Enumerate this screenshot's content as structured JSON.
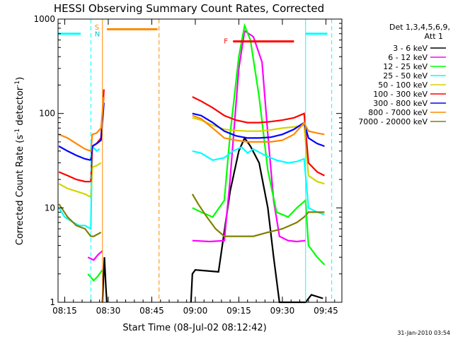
{
  "chart_data": {
    "type": "line",
    "title": "HESSI Observing Summary Count Rates, Corrected",
    "xlabel": "Start Time (08-Jul-02 08:12:42)",
    "ylabel": "Corrected Count Rate (s⁻¹ detector⁻¹)",
    "ylabel_main": "Corrected Count Rate (s",
    "ylabel_sup1": "-1",
    "ylabel_mid": " detector",
    "ylabel_sup2": "-1",
    "ylabel_end": ")",
    "footer": "31-Jan-2010 03:54",
    "xlim": [
      "08:12:42",
      "09:50:30"
    ],
    "ylim": [
      1,
      1000
    ],
    "yscale": "log",
    "x_ticks": [
      "08:15",
      "08:30",
      "08:45",
      "09:00",
      "09:15",
      "09:30",
      "09:45"
    ],
    "y_ticks": [
      "1",
      "10",
      "100",
      "1000"
    ],
    "legend": {
      "header1": "Det 1,3,4,5,6,9,",
      "header2": "Att 1",
      "placement": "right"
    },
    "series": [
      {
        "name": "3 - 6 keV",
        "color": "#000000",
        "points": [
          [
            "08:28:00",
            1
          ],
          [
            "08:28:40",
            3
          ],
          [
            "08:29:10",
            1.5
          ],
          [
            "08:29:30",
            1
          ],
          [
            "08:58:30",
            1
          ],
          [
            "08:59:00",
            2
          ],
          [
            "09:00:00",
            2.2
          ],
          [
            "09:08:00",
            2.1
          ],
          [
            "09:12:00",
            15
          ],
          [
            "09:15:00",
            40
          ],
          [
            "09:17:00",
            55
          ],
          [
            "09:19:00",
            45
          ],
          [
            "09:22:00",
            30
          ],
          [
            "09:25:00",
            10
          ],
          [
            "09:27:00",
            3
          ],
          [
            "09:29:00",
            1
          ],
          [
            "09:38:00",
            1
          ],
          [
            "09:40:00",
            1.2
          ],
          [
            "09:44:00",
            1.1
          ]
        ]
      },
      {
        "name": "6 - 12 keV",
        "color": "#ff00ff",
        "points": [
          [
            "08:23:00",
            3
          ],
          [
            "08:25:00",
            2.8
          ],
          [
            "08:26:30",
            3.2
          ],
          [
            "08:28:00",
            3.5
          ],
          [
            "08:59:00",
            4.5
          ],
          [
            "09:05:00",
            4.4
          ],
          [
            "09:10:00",
            4.5
          ],
          [
            "09:12:00",
            20
          ],
          [
            "09:15:00",
            300
          ],
          [
            "09:17:00",
            750
          ],
          [
            "09:20:00",
            650
          ],
          [
            "09:23:00",
            350
          ],
          [
            "09:25:00",
            60
          ],
          [
            "09:27:00",
            12
          ],
          [
            "09:29:00",
            5
          ],
          [
            "09:32:00",
            4.5
          ],
          [
            "09:35:00",
            4.4
          ],
          [
            "09:38:00",
            4.5
          ]
        ]
      },
      {
        "name": "12 - 25 keV",
        "color": "#00ff00",
        "points": [
          [
            "08:23:00",
            2
          ],
          [
            "08:25:00",
            1.7
          ],
          [
            "08:26:30",
            1.9
          ],
          [
            "08:28:00",
            2.2
          ],
          [
            "08:59:00",
            10
          ],
          [
            "09:02:00",
            9
          ],
          [
            "09:06:00",
            8
          ],
          [
            "09:10:00",
            12
          ],
          [
            "09:12:00",
            60
          ],
          [
            "09:15:00",
            400
          ],
          [
            "09:17:00",
            850
          ],
          [
            "09:19:00",
            600
          ],
          [
            "09:22:00",
            150
          ],
          [
            "09:25:00",
            25
          ],
          [
            "09:28:00",
            9
          ],
          [
            "09:32:00",
            8
          ],
          [
            "09:35:00",
            10
          ],
          [
            "09:38:00",
            12
          ],
          [
            "09:39:00",
            4
          ],
          [
            "09:42:00",
            3
          ],
          [
            "09:44:30",
            2.5
          ]
        ]
      },
      {
        "name": "25 - 50 keV",
        "color": "#00ffff",
        "points": [
          [
            "08:13:00",
            10
          ],
          [
            "08:15:00",
            8
          ],
          [
            "08:18:00",
            7
          ],
          [
            "08:20:00",
            6.5
          ],
          [
            "08:22:00",
            6.5
          ],
          [
            "08:24:00",
            6
          ],
          [
            "08:24:30",
            45
          ],
          [
            "08:26:00",
            40
          ],
          [
            "08:27:00",
            42
          ],
          [
            "08:59:00",
            40
          ],
          [
            "09:02:00",
            38
          ],
          [
            "09:06:00",
            32
          ],
          [
            "09:10:00",
            34
          ],
          [
            "09:13:00",
            40
          ],
          [
            "09:16:00",
            44
          ],
          [
            "09:18:00",
            38
          ],
          [
            "09:20:00",
            42
          ],
          [
            "09:24:00",
            36
          ],
          [
            "09:28:00",
            32
          ],
          [
            "09:32:00",
            30
          ],
          [
            "09:35:00",
            31
          ],
          [
            "09:37:30",
            33
          ],
          [
            "09:39:00",
            10
          ],
          [
            "09:42:00",
            9
          ],
          [
            "09:44:30",
            8.5
          ]
        ]
      },
      {
        "name": "50 - 100 keV",
        "color": "#d4d400",
        "points": [
          [
            "08:13:00",
            18
          ],
          [
            "08:16:00",
            16
          ],
          [
            "08:19:00",
            15
          ],
          [
            "08:22:00",
            14
          ],
          [
            "08:24:00",
            13
          ],
          [
            "08:24:30",
            27
          ],
          [
            "08:26:00",
            28
          ],
          [
            "08:27:30",
            30
          ],
          [
            "08:59:00",
            90
          ],
          [
            "09:02:00",
            85
          ],
          [
            "09:06:00",
            75
          ],
          [
            "09:10:00",
            68
          ],
          [
            "09:14:00",
            66
          ],
          [
            "09:18:00",
            65
          ],
          [
            "09:22:00",
            65
          ],
          [
            "09:26:00",
            67
          ],
          [
            "09:30:00",
            70
          ],
          [
            "09:34:00",
            72
          ],
          [
            "09:37:30",
            75
          ],
          [
            "09:39:00",
            22
          ],
          [
            "09:42:00",
            19
          ],
          [
            "09:44:30",
            18
          ]
        ]
      },
      {
        "name": "100 - 300 keV",
        "color": "#ff0000",
        "points": [
          [
            "08:13:00",
            24
          ],
          [
            "08:16:00",
            22
          ],
          [
            "08:19:00",
            20
          ],
          [
            "08:22:00",
            19
          ],
          [
            "08:24:00",
            19
          ],
          [
            "08:24:30",
            45
          ],
          [
            "08:26:00",
            48
          ],
          [
            "08:27:30",
            55
          ],
          [
            "08:28:30",
            180
          ],
          [
            "08:59:00",
            150
          ],
          [
            "09:02:00",
            135
          ],
          [
            "09:06:00",
            115
          ],
          [
            "09:10:00",
            95
          ],
          [
            "09:14:00",
            85
          ],
          [
            "09:18:00",
            80
          ],
          [
            "09:22:00",
            80
          ],
          [
            "09:26:00",
            82
          ],
          [
            "09:30:00",
            85
          ],
          [
            "09:34:00",
            90
          ],
          [
            "09:37:30",
            100
          ],
          [
            "09:39:00",
            30
          ],
          [
            "09:42:00",
            24
          ],
          [
            "09:44:30",
            22
          ]
        ]
      },
      {
        "name": "300 - 800 keV",
        "color": "#0000ff",
        "points": [
          [
            "08:13:00",
            45
          ],
          [
            "08:16:00",
            40
          ],
          [
            "08:19:00",
            36
          ],
          [
            "08:22:00",
            33
          ],
          [
            "08:24:00",
            32
          ],
          [
            "08:24:30",
            45
          ],
          [
            "08:26:00",
            48
          ],
          [
            "08:27:30",
            52
          ],
          [
            "08:28:30",
            130
          ],
          [
            "08:59:00",
            100
          ],
          [
            "09:02:00",
            95
          ],
          [
            "09:06:00",
            80
          ],
          [
            "09:10:00",
            65
          ],
          [
            "09:14:00",
            58
          ],
          [
            "09:18:00",
            55
          ],
          [
            "09:22:00",
            55
          ],
          [
            "09:26:00",
            56
          ],
          [
            "09:30:00",
            60
          ],
          [
            "09:34:00",
            68
          ],
          [
            "09:37:30",
            80
          ],
          [
            "09:39:00",
            55
          ],
          [
            "09:42:00",
            48
          ],
          [
            "09:44:30",
            45
          ]
        ]
      },
      {
        "name": "800 - 7000 keV",
        "color": "#ff8800",
        "points": [
          [
            "08:13:00",
            60
          ],
          [
            "08:16:00",
            55
          ],
          [
            "08:19:00",
            48
          ],
          [
            "08:22:00",
            42
          ],
          [
            "08:24:00",
            40
          ],
          [
            "08:24:30",
            60
          ],
          [
            "08:26:00",
            62
          ],
          [
            "08:27:30",
            70
          ],
          [
            "08:28:30",
            150
          ],
          [
            "08:59:00",
            95
          ],
          [
            "09:02:00",
            88
          ],
          [
            "09:06:00",
            70
          ],
          [
            "09:10:00",
            55
          ],
          [
            "09:14:00",
            52
          ],
          [
            "09:18:00",
            50
          ],
          [
            "09:22:00",
            50
          ],
          [
            "09:26:00",
            50
          ],
          [
            "09:30:00",
            52
          ],
          [
            "09:34:00",
            60
          ],
          [
            "09:37:30",
            80
          ],
          [
            "09:39:00",
            65
          ],
          [
            "09:42:00",
            62
          ],
          [
            "09:44:30",
            60
          ]
        ]
      },
      {
        "name": "7000 - 20000 keV",
        "color": "#808000",
        "points": [
          [
            "08:13:00",
            11
          ],
          [
            "08:16:00",
            8
          ],
          [
            "08:19:00",
            6.5
          ],
          [
            "08:22:00",
            6
          ],
          [
            "08:24:00",
            5
          ],
          [
            "08:25:00",
            5
          ],
          [
            "08:27:30",
            5.5
          ],
          [
            "08:59:00",
            14
          ],
          [
            "09:01:00",
            11
          ],
          [
            "09:04:00",
            8
          ],
          [
            "09:07:00",
            6
          ],
          [
            "09:10:00",
            5
          ],
          [
            "09:15:00",
            5
          ],
          [
            "09:20:00",
            5
          ],
          [
            "09:25:00",
            5.5
          ],
          [
            "09:30:00",
            6
          ],
          [
            "09:35:00",
            7
          ],
          [
            "09:37:30",
            8
          ],
          [
            "09:39:00",
            9
          ],
          [
            "09:42:00",
            9
          ],
          [
            "09:44:30",
            9
          ]
        ]
      }
    ],
    "annotations": {
      "saa_label": "S",
      "night_label": "N",
      "flare_label": "F",
      "cyan_bars": [
        [
          "08:12:42",
          "08:20:30"
        ],
        [
          "09:38:00",
          "09:45:30"
        ]
      ],
      "cyan_bar_level": 700,
      "orange_bar": [
        "08:29:30",
        "08:47:00"
      ],
      "orange_bar_level": 780,
      "flare_bar": [
        "09:13:00",
        "09:34:00"
      ],
      "flare_bar_level": 580,
      "cyan_dashed": [
        "08:24:00",
        "09:47:00"
      ],
      "cyan_solid": [
        "09:38:00"
      ],
      "orange_dashed": [
        "08:47:30"
      ],
      "orange_solid": [
        "08:28:00"
      ],
      "saa_color": "#ff8800",
      "night_color": "#00c8c8",
      "flare_color": "#ff0000"
    }
  }
}
